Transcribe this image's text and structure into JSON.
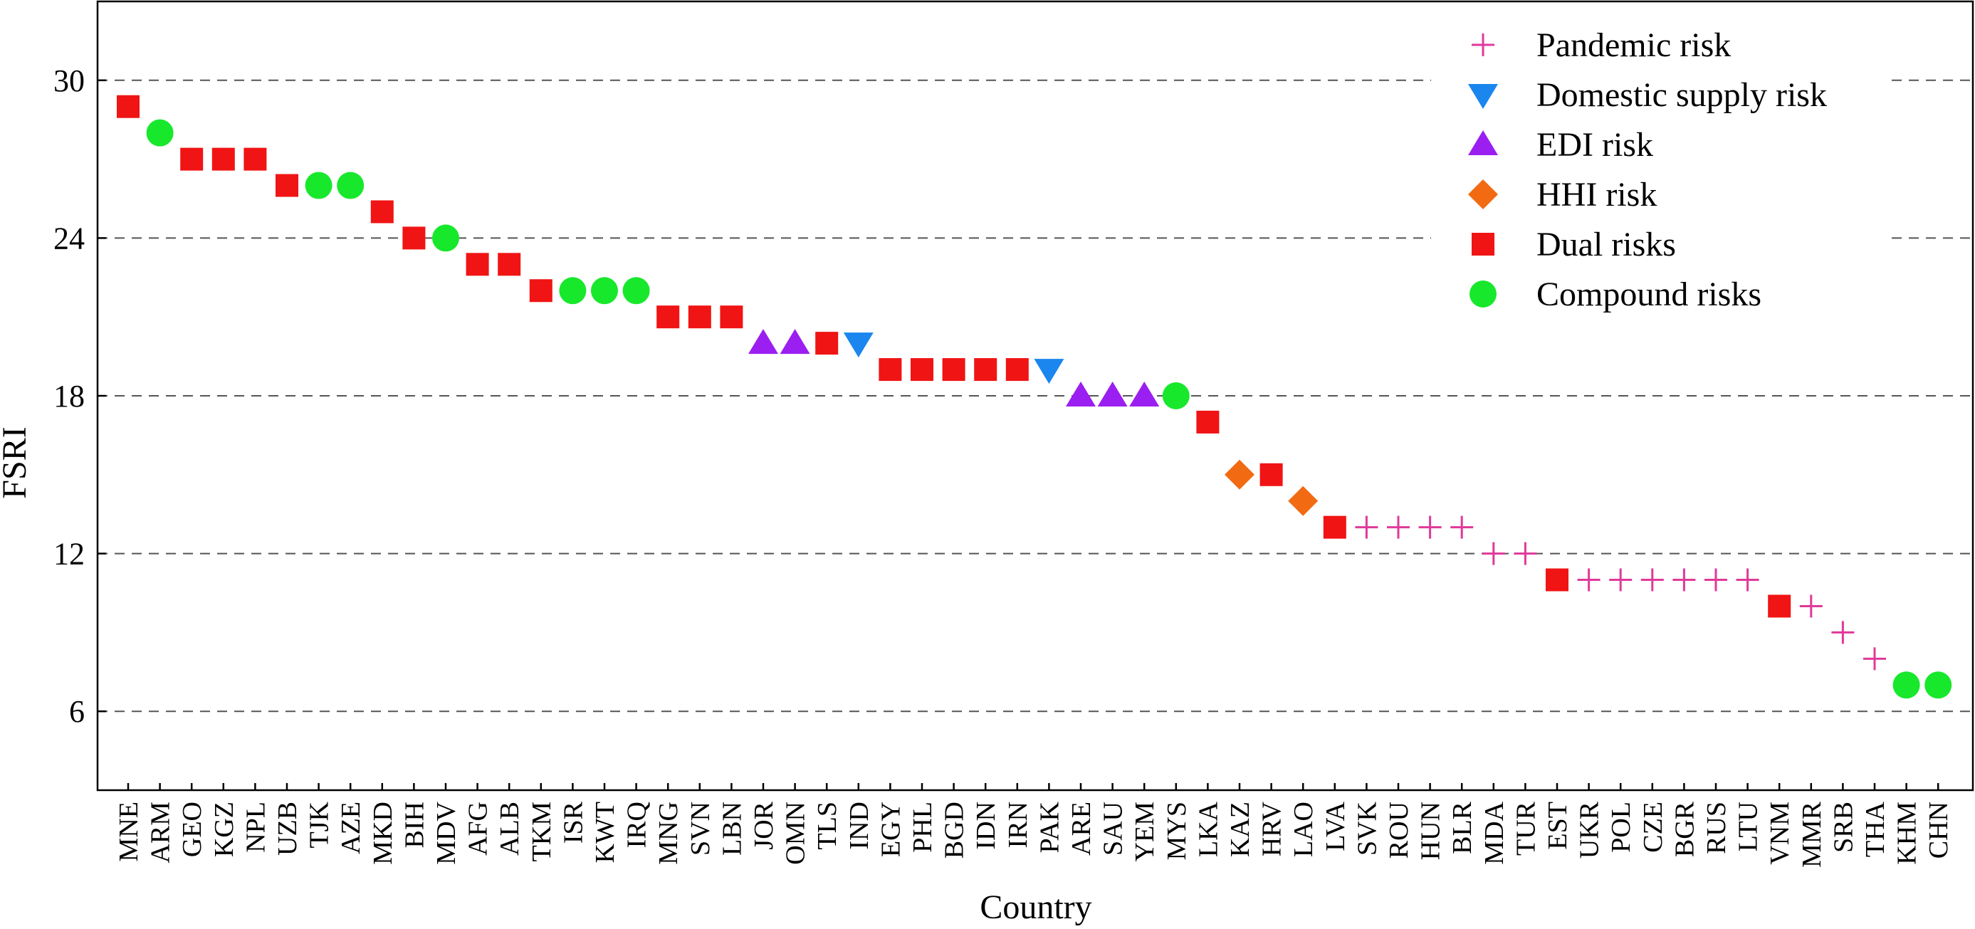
{
  "chart_data": {
    "type": "scatter",
    "xlabel": "Country",
    "ylabel": "FSRI",
    "ylim": [
      3,
      33
    ],
    "yticks": [
      6,
      12,
      18,
      24,
      30
    ],
    "grid": "horizontal-dashed",
    "legend_position": "top-right",
    "categories": [
      "MNE",
      "ARM",
      "GEO",
      "KGZ",
      "NPL",
      "UZB",
      "TJK",
      "AZE",
      "MKD",
      "BIH",
      "MDV",
      "AFG",
      "ALB",
      "TKM",
      "ISR",
      "KWT",
      "IRQ",
      "MNG",
      "SVN",
      "LBN",
      "JOR",
      "OMN",
      "TLS",
      "IND",
      "EGY",
      "PHL",
      "BGD",
      "IDN",
      "IRN",
      "PAK",
      "ARE",
      "SAU",
      "YEM",
      "MYS",
      "LKA",
      "KAZ",
      "HRV",
      "LAO",
      "LVA",
      "SVK",
      "ROU",
      "HUN",
      "BLR",
      "MDA",
      "TUR",
      "EST",
      "UKR",
      "POL",
      "CZE",
      "BGR",
      "RUS",
      "LTU",
      "VNM",
      "MMR",
      "SRB",
      "THA",
      "KHM",
      "CHN"
    ],
    "values": [
      29,
      28,
      27,
      27,
      27,
      26,
      26,
      26,
      25,
      24,
      24,
      23,
      23,
      22,
      22,
      22,
      22,
      21,
      21,
      21,
      20,
      20,
      20,
      20,
      19,
      19,
      19,
      19,
      19,
      19,
      18,
      18,
      18,
      18,
      17,
      15,
      15,
      14,
      13,
      13,
      13,
      13,
      13,
      12,
      12,
      11,
      11,
      11,
      11,
      11,
      11,
      11,
      10,
      10,
      9,
      8,
      7,
      7
    ],
    "risk_types": [
      "dual",
      "compound",
      "dual",
      "dual",
      "dual",
      "dual",
      "compound",
      "compound",
      "dual",
      "dual",
      "compound",
      "dual",
      "dual",
      "dual",
      "compound",
      "compound",
      "compound",
      "dual",
      "dual",
      "dual",
      "edi",
      "edi",
      "dual",
      "domestic",
      "dual",
      "dual",
      "dual",
      "dual",
      "dual",
      "domestic",
      "edi",
      "edi",
      "edi",
      "compound",
      "dual",
      "hhi",
      "dual",
      "hhi",
      "dual",
      "pandemic",
      "pandemic",
      "pandemic",
      "pandemic",
      "pandemic",
      "pandemic",
      "dual",
      "pandemic",
      "pandemic",
      "pandemic",
      "pandemic",
      "pandemic",
      "pandemic",
      "dual",
      "pandemic",
      "pandemic",
      "pandemic",
      "compound",
      "compound"
    ],
    "series": [
      {
        "key": "pandemic",
        "name": "Pandemic risk",
        "marker": "plus",
        "color": "#e0399a"
      },
      {
        "key": "domestic",
        "name": "Domestic supply risk",
        "marker": "triangle-down",
        "color": "#1a86ee"
      },
      {
        "key": "edi",
        "name": "EDI risk",
        "marker": "triangle-up",
        "color": "#9b1ff0"
      },
      {
        "key": "hhi",
        "name": "HHI risk",
        "marker": "diamond",
        "color": "#f26b12"
      },
      {
        "key": "dual",
        "name": "Dual risks",
        "marker": "square",
        "color": "#f01414"
      },
      {
        "key": "compound",
        "name": "Compound risks",
        "marker": "circle",
        "color": "#17e82c"
      }
    ]
  }
}
